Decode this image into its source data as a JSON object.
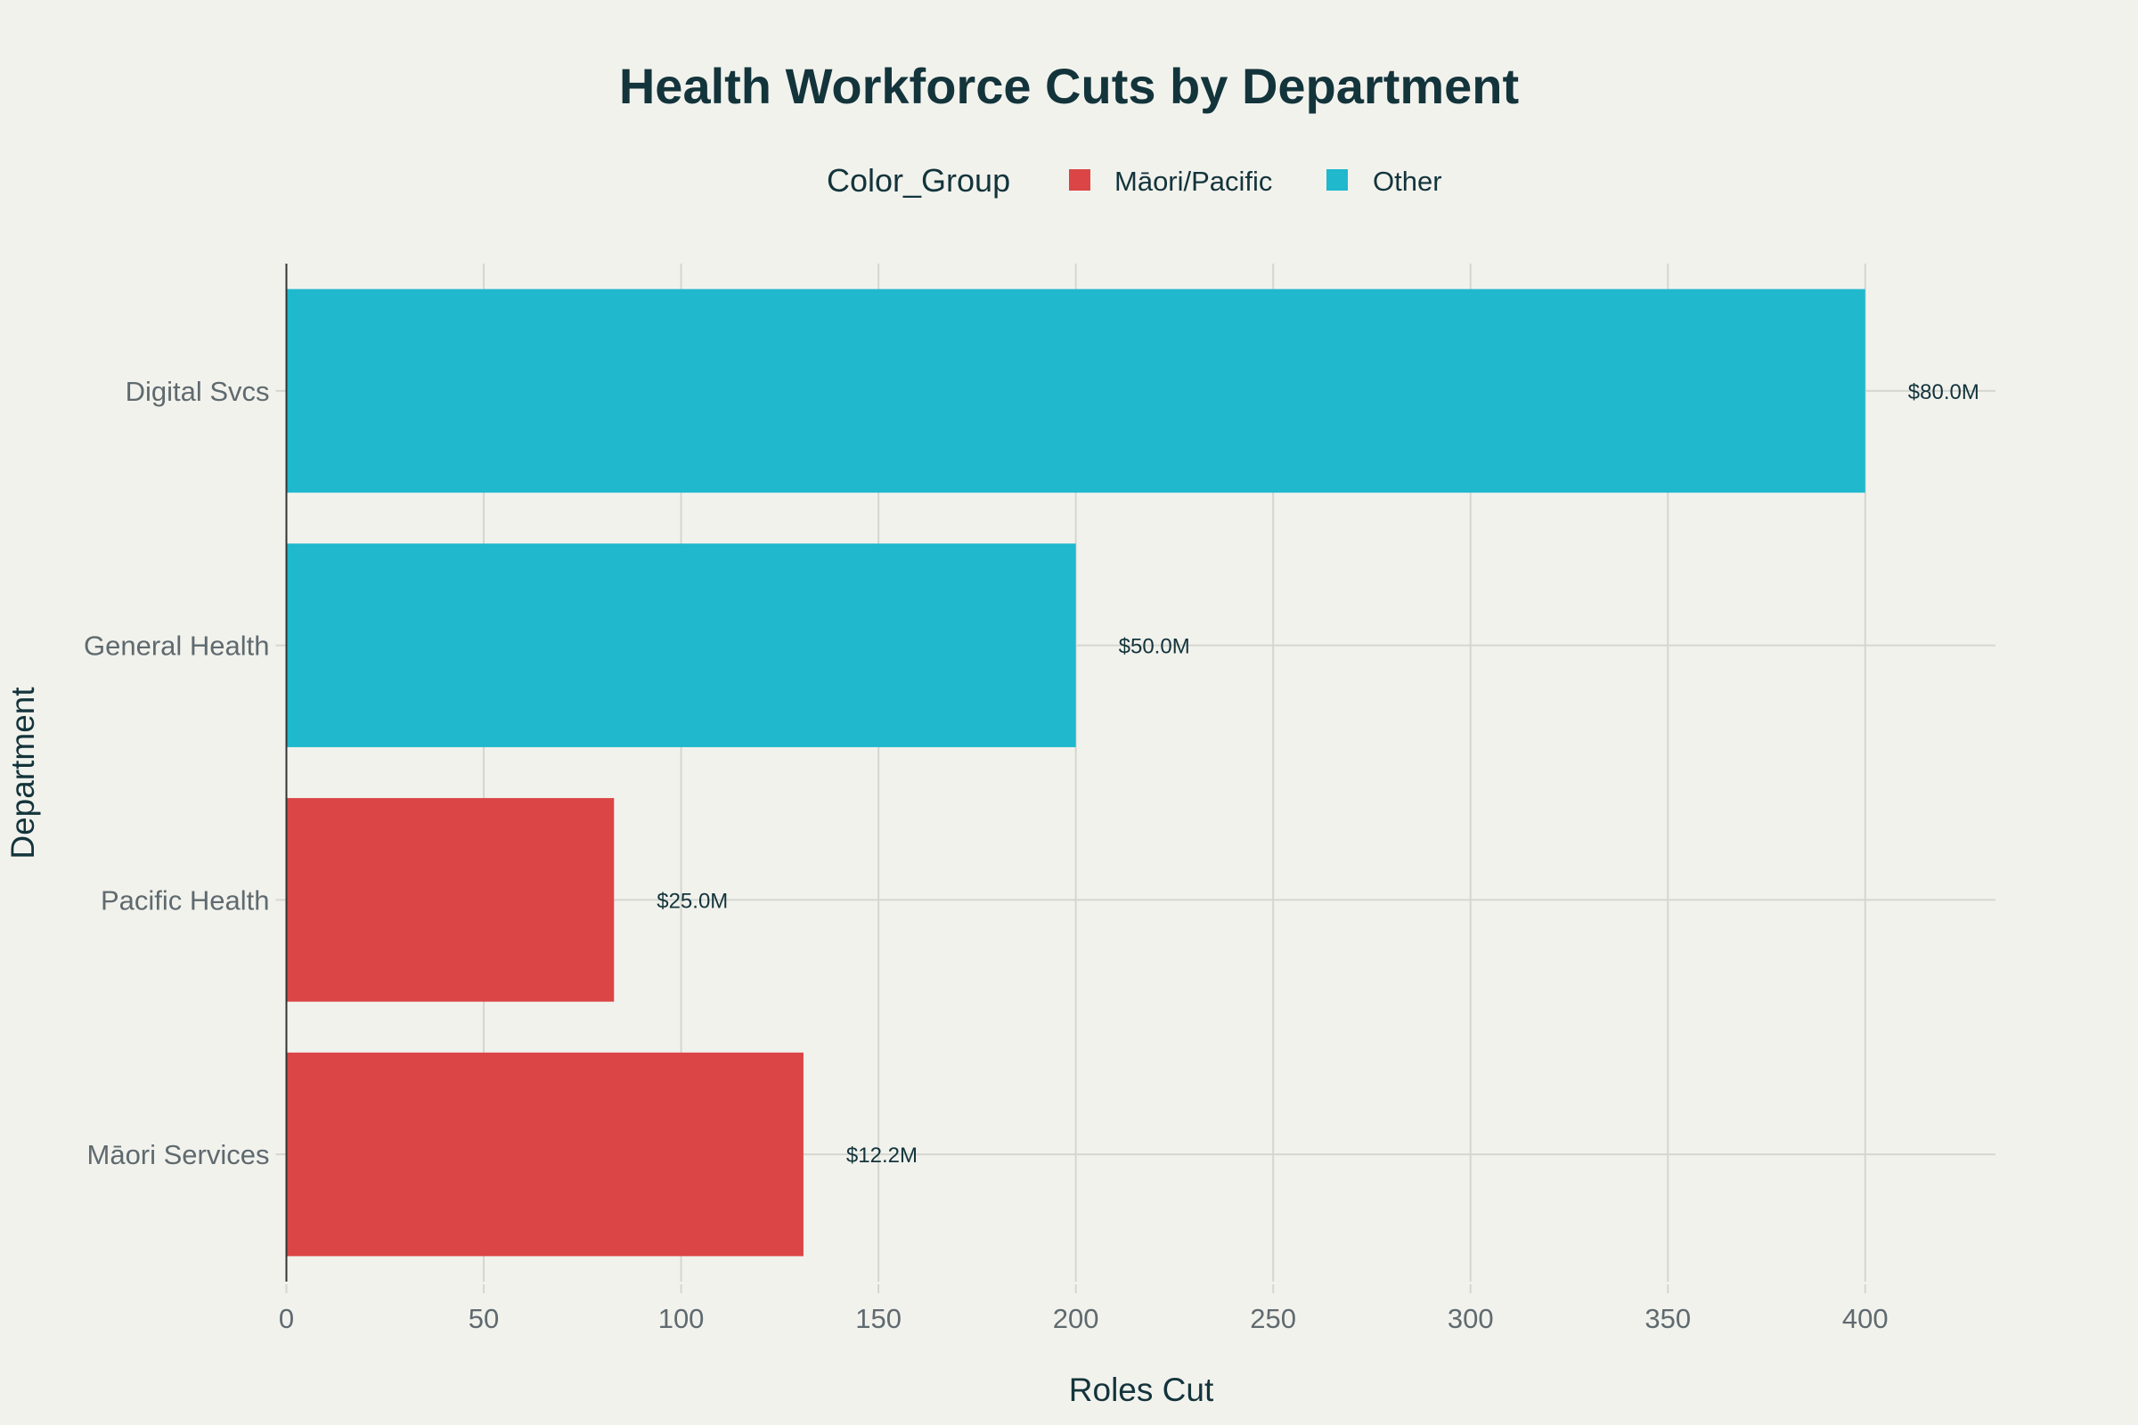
{
  "chart_data": {
    "type": "bar",
    "orientation": "horizontal",
    "title": "Health Workforce Cuts by Department",
    "xlabel": "Roles Cut",
    "ylabel": "Department",
    "xlim": [
      0,
      433
    ],
    "xticks": [
      0,
      50,
      100,
      150,
      200,
      250,
      300,
      350,
      400
    ],
    "grid": true,
    "legend": {
      "title": "Color_Group",
      "placement": "top-center",
      "entries": [
        {
          "name": "Māori/Pacific",
          "color": "#db4545"
        },
        {
          "name": "Other",
          "color": "#1fb8cd"
        }
      ]
    },
    "categories": [
      "Digital Svcs",
      "General Health",
      "Pacific Health",
      "Māori Services"
    ],
    "values": [
      400,
      200,
      83,
      131
    ],
    "groups": [
      "Other",
      "Other",
      "Māori/Pacific",
      "Māori/Pacific"
    ],
    "data_labels": [
      "$80.0M",
      "$50.0M",
      "$25.0M",
      "$12.2M"
    ]
  },
  "colors": {
    "background": "#f2f2ed",
    "grid": "#d6d6d1",
    "axis": "#333333",
    "text": "#13343b"
  }
}
